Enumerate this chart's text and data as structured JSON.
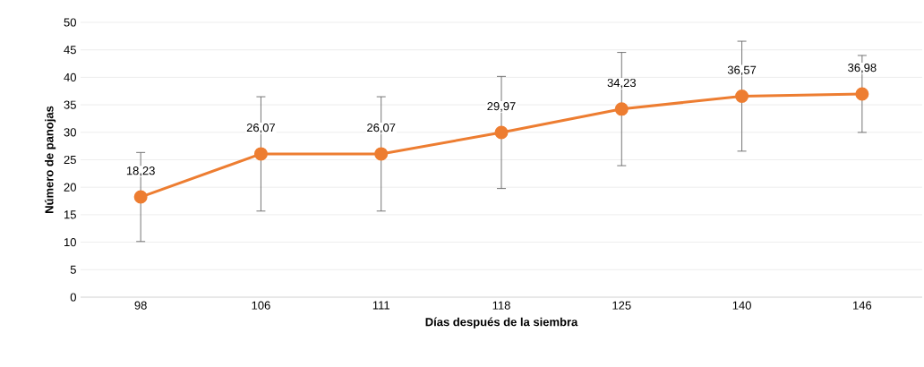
{
  "chart_data": {
    "type": "line",
    "xlabel": "Días después de la siembra",
    "ylabel": "Número de panojas",
    "categories": [
      "98",
      "106",
      "111",
      "118",
      "125",
      "140",
      "146"
    ],
    "series": [
      {
        "color": "#ed7d31",
        "values": [
          18.23,
          26.07,
          26.07,
          29.97,
          34.23,
          36.57,
          36.98
        ],
        "errors": [
          8.1,
          10.4,
          10.4,
          10.2,
          10.3,
          10,
          7
        ],
        "value_labels": [
          "18,23",
          "26,07",
          "26,07",
          "29,97",
          "34,23",
          "36,57",
          "36,98"
        ]
      }
    ],
    "ylim": [
      0,
      50
    ],
    "yticks": [
      0,
      5,
      10,
      15,
      20,
      25,
      30,
      35,
      40,
      45,
      50
    ],
    "grid": "y",
    "marker": "circle",
    "line_style": "solid"
  }
}
